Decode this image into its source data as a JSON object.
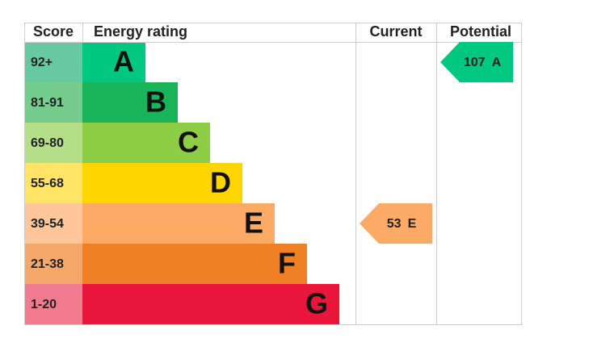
{
  "header": {
    "score": "Score",
    "rating": "Energy rating",
    "current": "Current",
    "potential": "Potential"
  },
  "bands": [
    {
      "score": "92+",
      "letter": "A",
      "color": "#00c781",
      "score_color": "#66c9a1"
    },
    {
      "score": "81-91",
      "letter": "B",
      "color": "#19b459",
      "score_color": "#74cd8d"
    },
    {
      "score": "69-80",
      "letter": "C",
      "color": "#8dce46",
      "score_color": "#b4df88"
    },
    {
      "score": "55-68",
      "letter": "D",
      "color": "#ffd500",
      "score_color": "#ffe466"
    },
    {
      "score": "39-54",
      "letter": "E",
      "color": "#fcaa65",
      "score_color": "#fdc69b"
    },
    {
      "score": "21-38",
      "letter": "F",
      "color": "#ef8023",
      "score_color": "#f5a86b"
    },
    {
      "score": "1-20",
      "letter": "G",
      "color": "#e9153b",
      "score_color": "#f07b8f"
    }
  ],
  "current": {
    "score": 53,
    "letter": "E"
  },
  "potential": {
    "score": 107,
    "letter": "A"
  }
}
